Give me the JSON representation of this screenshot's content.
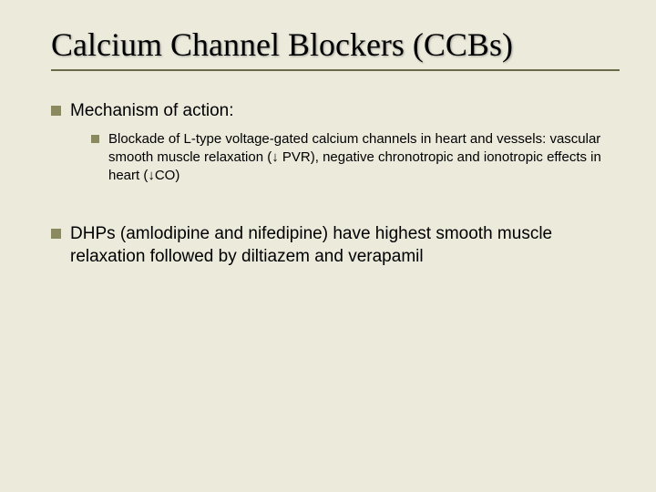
{
  "slide": {
    "title": "Calcium Channel Blockers (CCBs)",
    "background_color": "#eceadb",
    "rule_color": "#6b6b4a",
    "bullet_color": "#8a895f",
    "title_font": "Times New Roman",
    "title_fontsize": 36,
    "body_font": "Arial",
    "level1_fontsize": 19,
    "level2_fontsize": 15,
    "items": [
      {
        "text": "Mechanism of action:",
        "children": [
          {
            "text": "Blockade of L-type voltage-gated  calcium channels in heart and vessels:  vascular smooth muscle relaxation (↓ PVR), negative chronotropic and  ionotropic  effects in heart (↓CO)"
          }
        ]
      },
      {
        "text": "DHPs (amlodipine and nifedipine) have highest smooth muscle relaxation followed by diltiazem and verapamil",
        "children": []
      }
    ]
  }
}
